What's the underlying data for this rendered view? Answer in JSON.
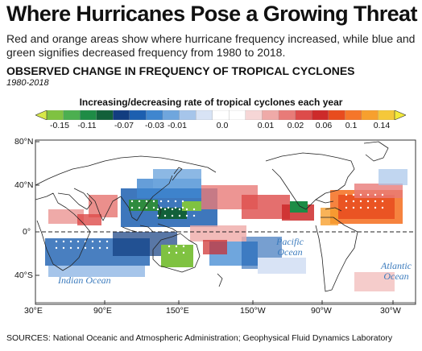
{
  "header": {
    "headline": "Where Hurricanes Pose a Growing Threat",
    "deck": "Red and orange areas show where hurricane frequency increased, while blue and green signifies decreased frequency from 1980 to 2018."
  },
  "figure": {
    "title": "OBSERVED CHANGE IN FREQUENCY OF TROPICAL CYCLONES",
    "period": "1980-2018",
    "legend_title": "Increasing/decreasing rate of tropical cyclones each year",
    "legend_ticks": [
      "-0.15",
      "-0.11",
      "-0.07",
      "-0.03",
      "-0.01",
      "0.0",
      "0.01",
      "0.02",
      "0.06",
      "0.1",
      "0.14"
    ],
    "legend_colors": [
      "#7fc241",
      "#4caf50",
      "#1e8c46",
      "#12603a",
      "#123d80",
      "#1c5fb0",
      "#3f86cf",
      "#6fa6dd",
      "#a6c5ea",
      "#d8e3f5",
      "#ffffff",
      "#ffffff",
      "#f6d6d6",
      "#efaaa8",
      "#e87b78",
      "#dd4b4a",
      "#cd2a2a",
      "#e84c1e",
      "#f5762a",
      "#f7a02e",
      "#f5c83a"
    ]
  },
  "map": {
    "lat_labels": [
      "80°N",
      "40°N",
      "0°",
      "40°S"
    ],
    "lon_labels": [
      "30°E",
      "90°E",
      "150°E",
      "150°W",
      "90°W",
      "30°W"
    ],
    "oceans": {
      "indian": "Indian Ocean",
      "pacific": "Pacific Ocean",
      "atlantic": "Atlantic Ocean"
    },
    "land_color": "#ffffff",
    "coast_color": "#222222"
  },
  "footer": {
    "sources": "SOURCES: National Oceanic and Atmospheric Administration; Geophysical Fluid Dynamics Laboratory"
  }
}
